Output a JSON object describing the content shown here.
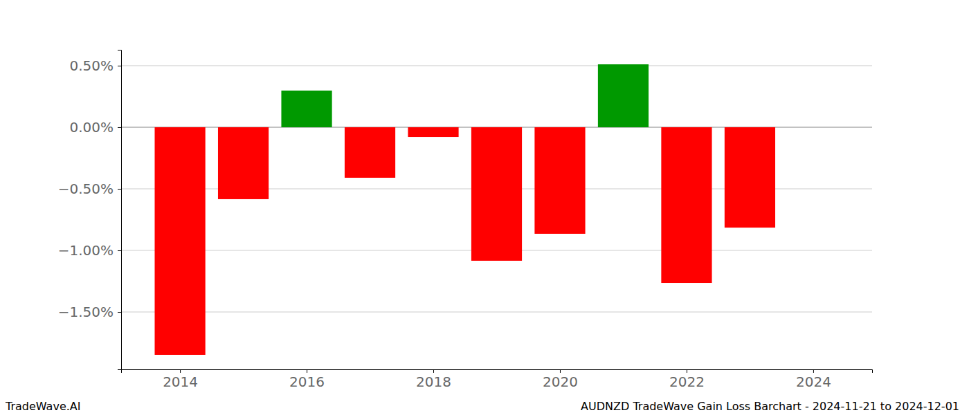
{
  "chart_data": {
    "type": "bar",
    "title": "AUDNZD TradeWave Gain Loss Barchart - 2024-11-21 to 2024-12-01",
    "annotations": [
      "TradeWave.AI"
    ],
    "x": [
      2014,
      2015,
      2016,
      2017,
      2018,
      2019,
      2020,
      2021,
      2022,
      2023
    ],
    "values": [
      -1.848,
      -0.584,
      0.298,
      -0.41,
      -0.079,
      -1.084,
      -0.865,
      0.511,
      -1.264,
      -0.815
    ],
    "colors": [
      "#ff0000",
      "#ff0000",
      "#009900",
      "#ff0000",
      "#ff0000",
      "#ff0000",
      "#ff0000",
      "#009900",
      "#ff0000",
      "#ff0000"
    ],
    "xlim": [
      2013.07,
      2024.93
    ],
    "xticks": [
      2014,
      2016,
      2018,
      2020,
      2022,
      2024
    ],
    "ylim": [
      -1.966,
      0.629
    ],
    "yticks": [
      {
        "value": -1.5,
        "label": "−1.50%"
      },
      {
        "value": -1,
        "label": "−1.00%"
      },
      {
        "value": -0.5,
        "label": "−0.50%"
      },
      {
        "value": 0,
        "label": "0.00%"
      },
      {
        "value": 0.5,
        "label": "0.50%"
      }
    ],
    "grid": true
  }
}
